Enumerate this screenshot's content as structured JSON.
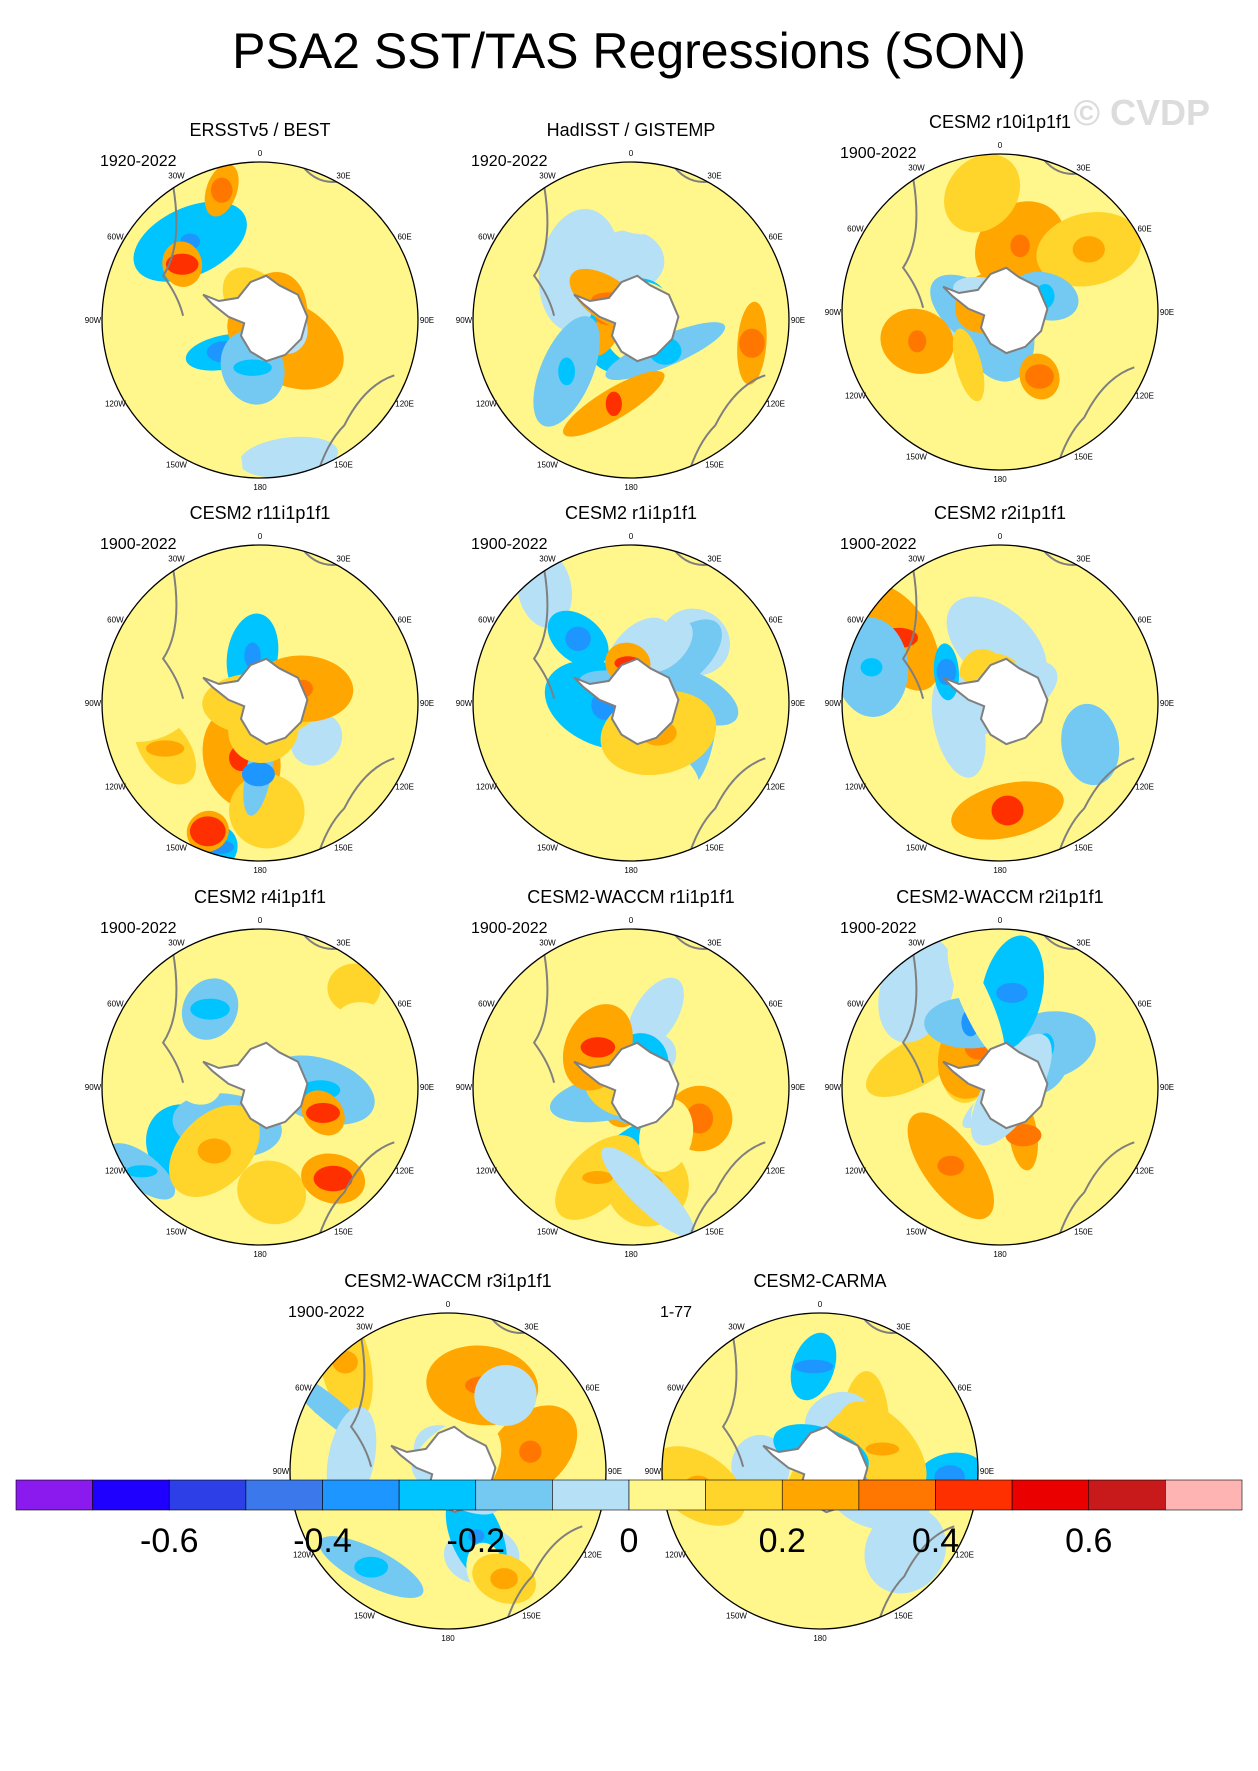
{
  "title": "PSA2 SST/TAS Regressions (SON)",
  "watermark": "© CVDP",
  "lon_labels": [
    "0",
    "30E",
    "60E",
    "90E",
    "120E",
    "150E",
    "180",
    "150W",
    "120W",
    "90W",
    "60W",
    "30W"
  ],
  "colors": {
    "land": "#ffffff",
    "coast": "#7f7f7f",
    "palette": [
      "#8a1aed",
      "#1f00ff",
      "#2d3fe6",
      "#3b78eb",
      "#1e96ff",
      "#00c4ff",
      "#73c9f2",
      "#b5e0f5",
      "#fff78c",
      "#ffd42b",
      "#ffa600",
      "#ff7700",
      "#ff3000",
      "#eb0000",
      "#c8191b",
      "#ffb4b4"
    ]
  },
  "chart_data": {
    "type": "heatmap",
    "projection": "south-polar-stereographic",
    "variable": "SST/TAS regression onto PSA2 (SON)",
    "colorbar": {
      "levels": [
        -0.7,
        -0.6,
        -0.5,
        -0.4,
        -0.3,
        -0.2,
        -0.1,
        0,
        0.1,
        0.2,
        0.3,
        0.4,
        0.5,
        0.6,
        0.7
      ],
      "tick_labels": [
        "-0.6",
        "-0.4",
        "-0.2",
        "0",
        "0.2",
        "0.4",
        "0.6"
      ],
      "tick_values": [
        -0.6,
        -0.4,
        -0.2,
        0,
        0.2,
        0.4,
        0.6
      ]
    },
    "panels": [
      {
        "name": "ERSSTv5 / BEST",
        "years": "1920-2022"
      },
      {
        "name": "HadISST / GISTEMP",
        "years": "1920-2022"
      },
      {
        "name": "CESM2 r10i1p1f1",
        "years": "1900-2022"
      },
      {
        "name": "CESM2 r11i1p1f1",
        "years": "1900-2022"
      },
      {
        "name": "CESM2 r1i1p1f1",
        "years": "1900-2022"
      },
      {
        "name": "CESM2 r2i1p1f1",
        "years": "1900-2022"
      },
      {
        "name": "CESM2 r4i1p1f1",
        "years": "1900-2022"
      },
      {
        "name": "CESM2-WACCM r1i1p1f1",
        "years": "1900-2022"
      },
      {
        "name": "CESM2-WACCM r2i1p1f1",
        "years": "1900-2022"
      },
      {
        "name": "CESM2-WACCM r3i1p1f1",
        "years": "1900-2022"
      },
      {
        "name": "CESM2-CARMA",
        "years": "1-77"
      }
    ]
  }
}
